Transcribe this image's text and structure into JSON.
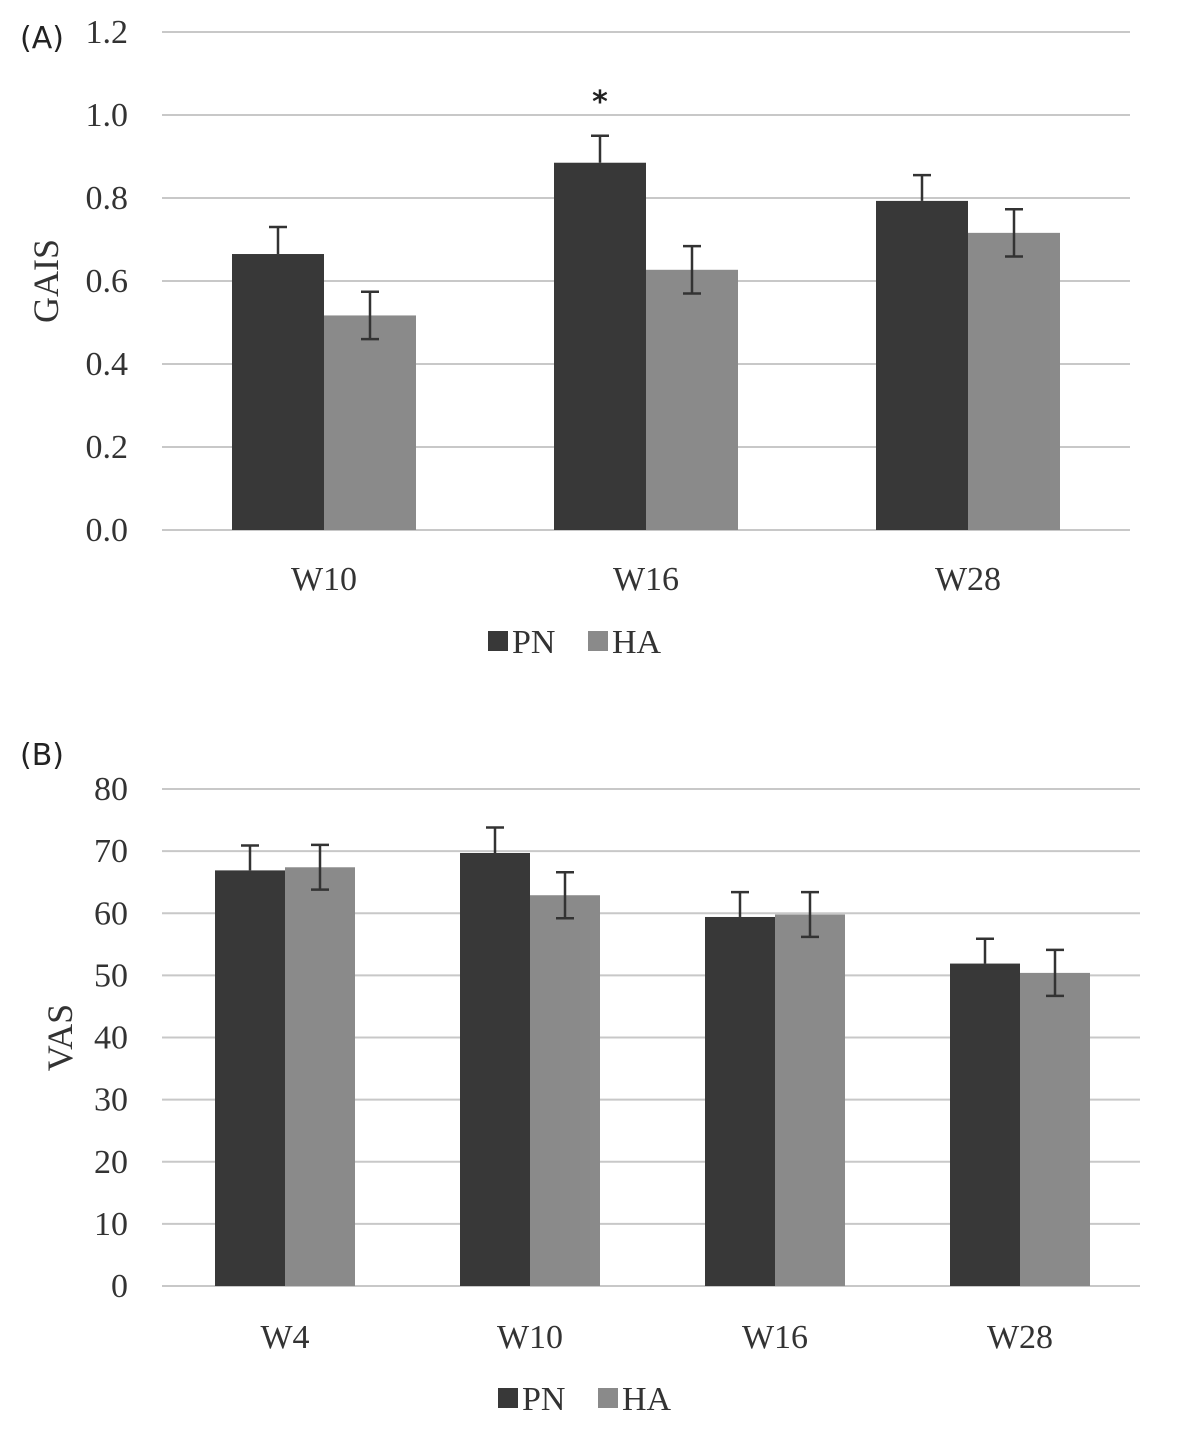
{
  "colors": {
    "PN": "#383838",
    "HA": "#8a8a8a",
    "grid": "#c8c8c8",
    "text": "#333333"
  },
  "chart_data": [
    {
      "panel": "(A)",
      "type": "bar",
      "title": "",
      "xlabel": "",
      "ylabel": "GAIS",
      "ylim": [
        0,
        1.2
      ],
      "yticks": [
        0.0,
        0.2,
        0.4,
        0.6,
        0.8,
        1.0,
        1.2
      ],
      "ytick_labels": [
        "0.0",
        "0.2",
        "0.4",
        "0.6",
        "0.8",
        "1.0",
        "1.2"
      ],
      "categories": [
        "W10",
        "W16",
        "W28"
      ],
      "series": [
        {
          "name": "PN",
          "values": [
            0.665,
            0.885,
            0.793
          ],
          "error": [
            0.065,
            0.065,
            0.062
          ]
        },
        {
          "name": "HA",
          "values": [
            0.517,
            0.627,
            0.716
          ],
          "error": [
            0.057,
            0.057,
            0.057
          ]
        }
      ],
      "annotations": [
        {
          "category": "W16",
          "series": "PN",
          "text": "*"
        }
      ],
      "grid": true,
      "legend": {
        "entries": [
          "PN",
          "HA"
        ],
        "placement": "bottom-center"
      }
    },
    {
      "panel": "(B)",
      "type": "bar",
      "title": "",
      "xlabel": "",
      "ylabel": "VAS",
      "ylim": [
        0,
        80
      ],
      "yticks": [
        0,
        10,
        20,
        30,
        40,
        50,
        60,
        70,
        80
      ],
      "ytick_labels": [
        "0",
        "10",
        "20",
        "30",
        "40",
        "50",
        "60",
        "70",
        "80"
      ],
      "categories": [
        "W4",
        "W10",
        "W16",
        "W28"
      ],
      "series": [
        {
          "name": "PN",
          "values": [
            66.9,
            69.7,
            59.4,
            51.9
          ],
          "error": [
            4.0,
            4.1,
            4.0,
            4.0
          ]
        },
        {
          "name": "HA",
          "values": [
            67.4,
            62.9,
            59.8,
            50.4
          ],
          "error": [
            3.6,
            3.7,
            3.6,
            3.7
          ]
        }
      ],
      "annotations": [],
      "grid": true,
      "legend": {
        "entries": [
          "PN",
          "HA"
        ],
        "placement": "bottom-center"
      }
    }
  ]
}
